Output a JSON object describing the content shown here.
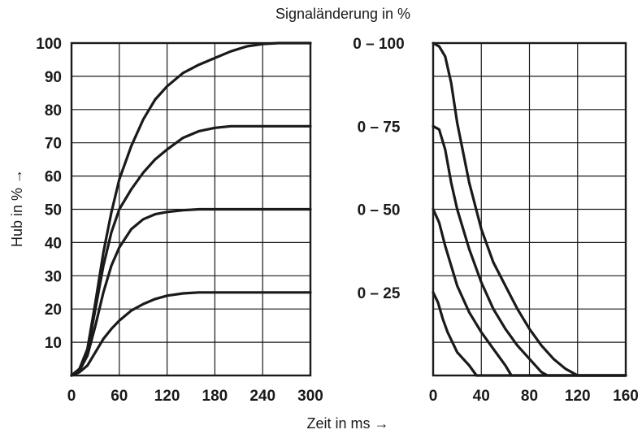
{
  "chart_data": {
    "type": "line",
    "title": "Signaländerung in %",
    "ylabel": "Hub in % →",
    "xlabel": "Zeit in ms →",
    "signal_labels": [
      "0 – 100",
      "0 – 75",
      "0 – 50",
      "0 – 25"
    ],
    "panels": [
      {
        "name": "rise",
        "xlim": [
          0,
          300
        ],
        "ylim": [
          0,
          100
        ],
        "x_ticks": [
          "0",
          "60",
          "120",
          "180",
          "240",
          "300"
        ],
        "y_ticks": [
          "10",
          "20",
          "30",
          "40",
          "50",
          "60",
          "70",
          "80",
          "90",
          "100"
        ],
        "series": [
          {
            "x": [
              0,
              10,
              20,
              30,
              40,
              50,
              60,
              75,
              90,
              105,
              120,
              140,
              160,
              180,
              200,
              220,
              240,
              260,
              300
            ],
            "y": [
              0,
              2,
              8,
              22,
              37,
              49,
              59,
              69,
              77,
              83,
              87,
              91,
              93.5,
              95.5,
              97.5,
              99,
              99.7,
              100,
              100
            ]
          },
          {
            "x": [
              0,
              10,
              20,
              30,
              40,
              50,
              60,
              75,
              90,
              105,
              120,
              140,
              160,
              180,
              200,
              240,
              300
            ],
            "y": [
              0,
              2,
              7,
              20,
              33,
              43,
              50,
              56,
              61,
              65,
              68,
              71.5,
              73.5,
              74.5,
              75,
              75,
              75
            ]
          },
          {
            "x": [
              0,
              10,
              20,
              30,
              40,
              50,
              60,
              75,
              90,
              105,
              120,
              140,
              160,
              200,
              300
            ],
            "y": [
              0,
              1.5,
              6,
              15,
              25,
              33,
              38.5,
              44,
              47,
              48.5,
              49.2,
              49.7,
              50,
              50,
              50
            ]
          },
          {
            "x": [
              0,
              10,
              20,
              30,
              40,
              50,
              60,
              75,
              90,
              105,
              120,
              140,
              160,
              200,
              300
            ],
            "y": [
              0,
              1,
              3,
              7,
              11,
              14,
              16.5,
              19.5,
              21.5,
              23,
              24,
              24.7,
              25,
              25,
              25
            ]
          }
        ]
      },
      {
        "name": "fall",
        "xlim": [
          0,
          160
        ],
        "ylim": [
          0,
          100
        ],
        "x_ticks": [
          "0",
          "40",
          "80",
          "120",
          "160"
        ],
        "series": [
          {
            "x": [
              0,
              5,
              10,
              15,
              20,
              25,
              30,
              40,
              50,
              60,
              70,
              80,
              90,
              100,
              110,
              120,
              160
            ],
            "y": [
              100,
              99,
              96,
              88,
              76,
              67,
              58,
              44,
              34,
              27,
              20,
              14,
              9,
              5,
              2,
              0,
              0
            ]
          },
          {
            "x": [
              0,
              5,
              10,
              15,
              20,
              30,
              40,
              50,
              60,
              70,
              80,
              90,
              95,
              160
            ],
            "y": [
              75,
              74,
              68,
              58,
              50,
              38,
              28,
              20,
              14,
              9,
              5,
              1,
              0,
              0
            ]
          },
          {
            "x": [
              0,
              5,
              10,
              15,
              20,
              30,
              40,
              50,
              60,
              65,
              160
            ],
            "y": [
              50,
              46,
              39,
              33,
              27,
              19,
              13,
              8,
              3,
              0,
              0
            ]
          },
          {
            "x": [
              0,
              4,
              8,
              12,
              16,
              20,
              30,
              36,
              160
            ],
            "y": [
              25,
              22,
              17,
              13,
              10,
              7,
              3,
              0,
              0
            ]
          }
        ]
      }
    ]
  }
}
